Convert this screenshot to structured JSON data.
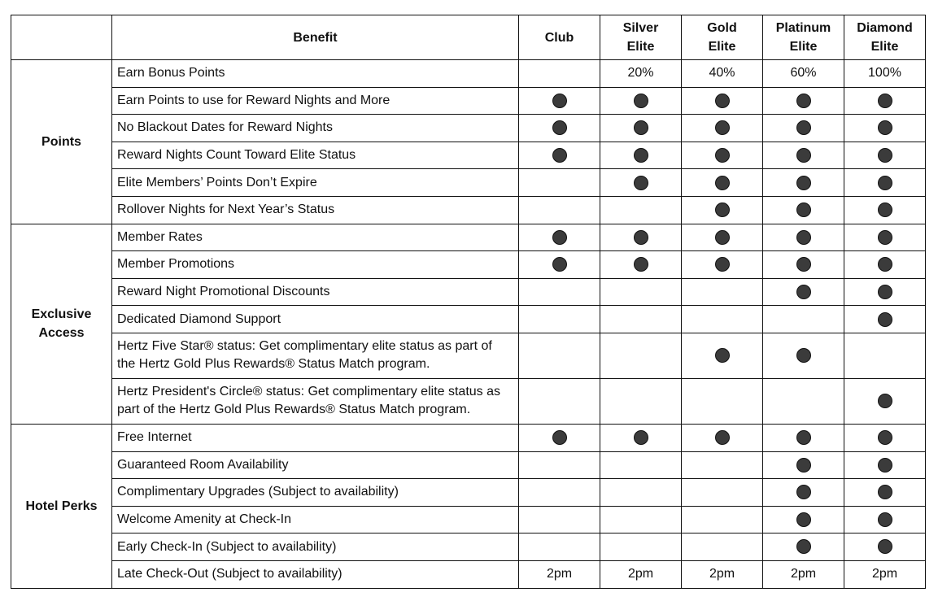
{
  "header": {
    "category": "",
    "benefit": "Benefit",
    "tiers": [
      "Club",
      "Silver Elite",
      "Gold Elite",
      "Platinum Elite",
      "Diamond Elite"
    ]
  },
  "colors": {
    "dot": "#3b3b3b",
    "border": "#111111"
  },
  "groups": [
    {
      "name": "Points",
      "rows": [
        {
          "benefit": "Earn Bonus Points",
          "values": [
            null,
            "20%",
            "40%",
            "60%",
            "100%"
          ]
        },
        {
          "benefit": "Earn Points to use for Reward Nights and More",
          "values": [
            true,
            true,
            true,
            true,
            true
          ]
        },
        {
          "benefit": "No Blackout Dates for Reward Nights",
          "values": [
            true,
            true,
            true,
            true,
            true
          ]
        },
        {
          "benefit": "Reward Nights Count Toward Elite Status",
          "values": [
            true,
            true,
            true,
            true,
            true
          ]
        },
        {
          "benefit": "Elite Members’ Points Don’t Expire",
          "values": [
            null,
            true,
            true,
            true,
            true
          ]
        },
        {
          "benefit": "Rollover Nights for Next Year’s Status",
          "values": [
            null,
            null,
            true,
            true,
            true
          ]
        }
      ]
    },
    {
      "name": "Exclusive Access",
      "rows": [
        {
          "benefit": "Member Rates",
          "values": [
            true,
            true,
            true,
            true,
            true
          ]
        },
        {
          "benefit": "Member Promotions",
          "values": [
            true,
            true,
            true,
            true,
            true
          ]
        },
        {
          "benefit": "Reward Night Promotional Discounts",
          "values": [
            null,
            null,
            null,
            true,
            true
          ]
        },
        {
          "benefit": "Dedicated Diamond Support",
          "values": [
            null,
            null,
            null,
            null,
            true
          ]
        },
        {
          "benefit": "Hertz Five Star® status: Get complimentary elite status as part of the Hertz Gold Plus Rewards® Status Match program.",
          "values": [
            null,
            null,
            true,
            true,
            null
          ],
          "tall": true
        },
        {
          "benefit": "Hertz President's Circle® status: Get complimentary elite status as part of the Hertz Gold Plus Rewards® Status Match program.",
          "values": [
            null,
            null,
            null,
            null,
            true
          ],
          "tall": true
        }
      ]
    },
    {
      "name": "Hotel Perks",
      "rows": [
        {
          "benefit": "Free Internet",
          "values": [
            true,
            true,
            true,
            true,
            true
          ]
        },
        {
          "benefit": "Guaranteed Room Availability",
          "values": [
            null,
            null,
            null,
            true,
            true
          ]
        },
        {
          "benefit": "Complimentary Upgrades (Subject to availability)",
          "values": [
            null,
            null,
            null,
            true,
            true
          ]
        },
        {
          "benefit": "Welcome Amenity at Check-In",
          "values": [
            null,
            null,
            null,
            true,
            true
          ]
        },
        {
          "benefit": "Early Check-In (Subject to availability)",
          "values": [
            null,
            null,
            null,
            true,
            true
          ]
        },
        {
          "benefit": "Late Check-Out (Subject to availability)",
          "values": [
            "2pm",
            "2pm",
            "2pm",
            "2pm",
            "2pm"
          ]
        }
      ]
    }
  ]
}
